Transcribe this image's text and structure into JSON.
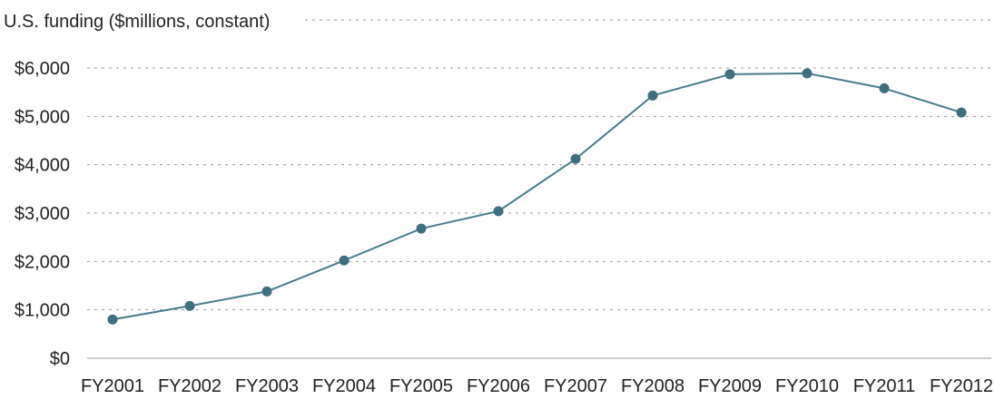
{
  "chart_data": {
    "type": "line",
    "ylabel": "U.S. funding ($millions, constant)",
    "categories": [
      "FY2001",
      "FY2002",
      "FY2003",
      "FY2004",
      "FY2005",
      "FY2006",
      "FY2007",
      "FY2008",
      "FY2009",
      "FY2010",
      "FY2011",
      "FY2012"
    ],
    "series": [
      {
        "values": [
          800,
          1080,
          1380,
          2020,
          2680,
          3040,
          4120,
          5430,
          5870,
          5890,
          5580,
          5080
        ],
        "color": "#4a7d8c"
      }
    ],
    "yticks": [
      0,
      1000,
      2000,
      3000,
      4000,
      5000,
      6000
    ],
    "ytick_labels": [
      "$0",
      "$1,000",
      "$2,000",
      "$3,000",
      "$4,000",
      "$5,000",
      "$6,000"
    ],
    "ylim": [
      0,
      6000
    ],
    "grid": true,
    "grid_style": "dashed",
    "marker_color": "#3f6f7e"
  }
}
